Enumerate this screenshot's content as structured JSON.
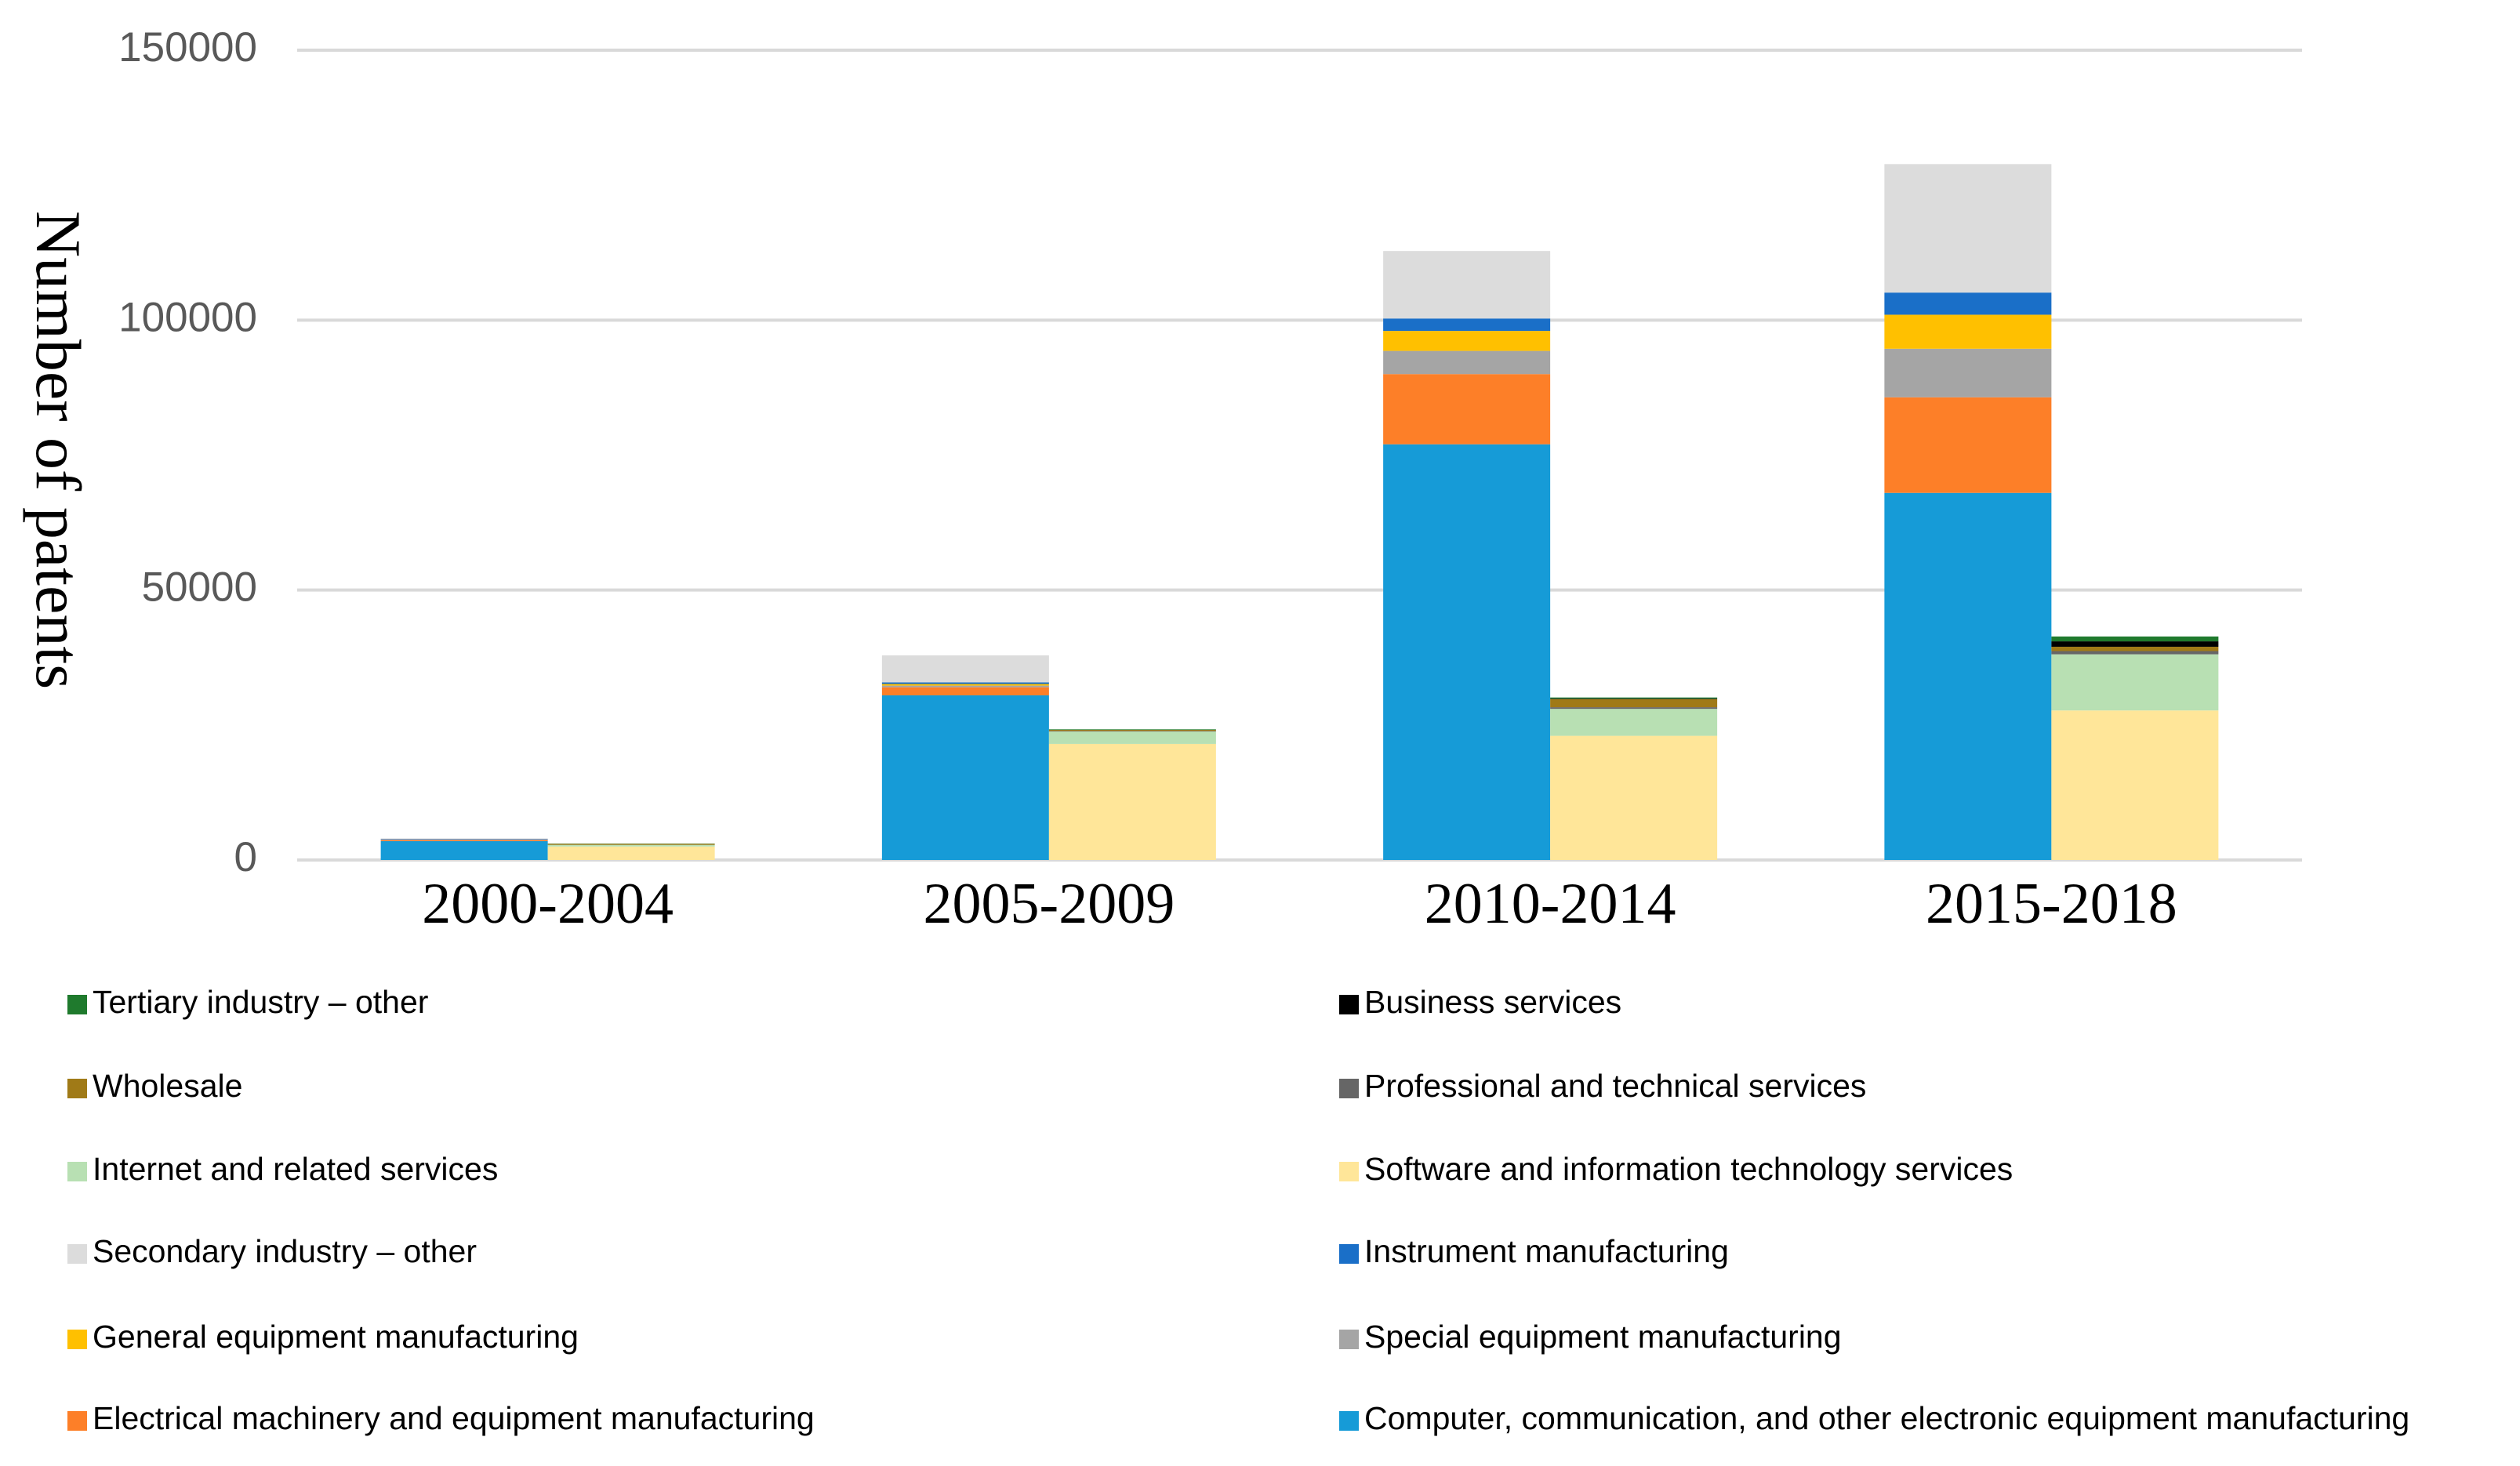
{
  "chart_data": {
    "type": "bar",
    "stacked": true,
    "y_label": "Number of patents",
    "categories": [
      "2000-2004",
      "2005-2009",
      "2010-2014",
      "2015-2018"
    ],
    "series": [
      {
        "name": "Tertiary industry – other",
        "color": "#1f7a2d",
        "stack": "right",
        "values": [
          50,
          100,
          200,
          900
        ]
      },
      {
        "name": "Business services",
        "color": "#000000",
        "stack": "right",
        "values": [
          0,
          0,
          100,
          1000
        ]
      },
      {
        "name": "Wholesale",
        "color": "#a07a17",
        "stack": "right",
        "values": [
          200,
          200,
          1500,
          800
        ]
      },
      {
        "name": "Professional and technical services",
        "color": "#666666",
        "stack": "right",
        "values": [
          0,
          100,
          300,
          600
        ]
      },
      {
        "name": "Internet and related services",
        "color": "#b8e0b3",
        "stack": "right",
        "values": [
          300,
          2300,
          5000,
          10400
        ]
      },
      {
        "name": "Software and information technology services",
        "color": "#ffe699",
        "stack": "right",
        "values": [
          2500,
          21500,
          23000,
          27700
        ]
      },
      {
        "name": "Secondary industry – other",
        "color": "#dcdcdc",
        "stack": "left",
        "values": [
          100,
          5000,
          12500,
          23800
        ]
      },
      {
        "name": "Instrument manufacturing",
        "color": "#1a6fc8",
        "stack": "left",
        "values": [
          100,
          300,
          2300,
          4100
        ]
      },
      {
        "name": "General equipment manufacturing",
        "color": "#ffc000",
        "stack": "left",
        "values": [
          0,
          300,
          3700,
          6300
        ]
      },
      {
        "name": "Special equipment manufacturing",
        "color": "#a5a5a5",
        "stack": "left",
        "values": [
          100,
          300,
          4300,
          9000
        ]
      },
      {
        "name": "Electrical machinery and equipment manufacturing",
        "color": "#fd7f28",
        "stack": "left",
        "values": [
          200,
          1500,
          13000,
          17700
        ]
      },
      {
        "name": "Computer, communication, and other electronic equipment manufacturing",
        "color": "#169bd7",
        "stack": "left",
        "values": [
          3500,
          30500,
          77000,
          68000
        ]
      }
    ],
    "ylim": [
      0,
      150000
    ],
    "yticks": [
      0,
      50000,
      100000,
      150000
    ],
    "grid": true,
    "legend": "bottom"
  }
}
